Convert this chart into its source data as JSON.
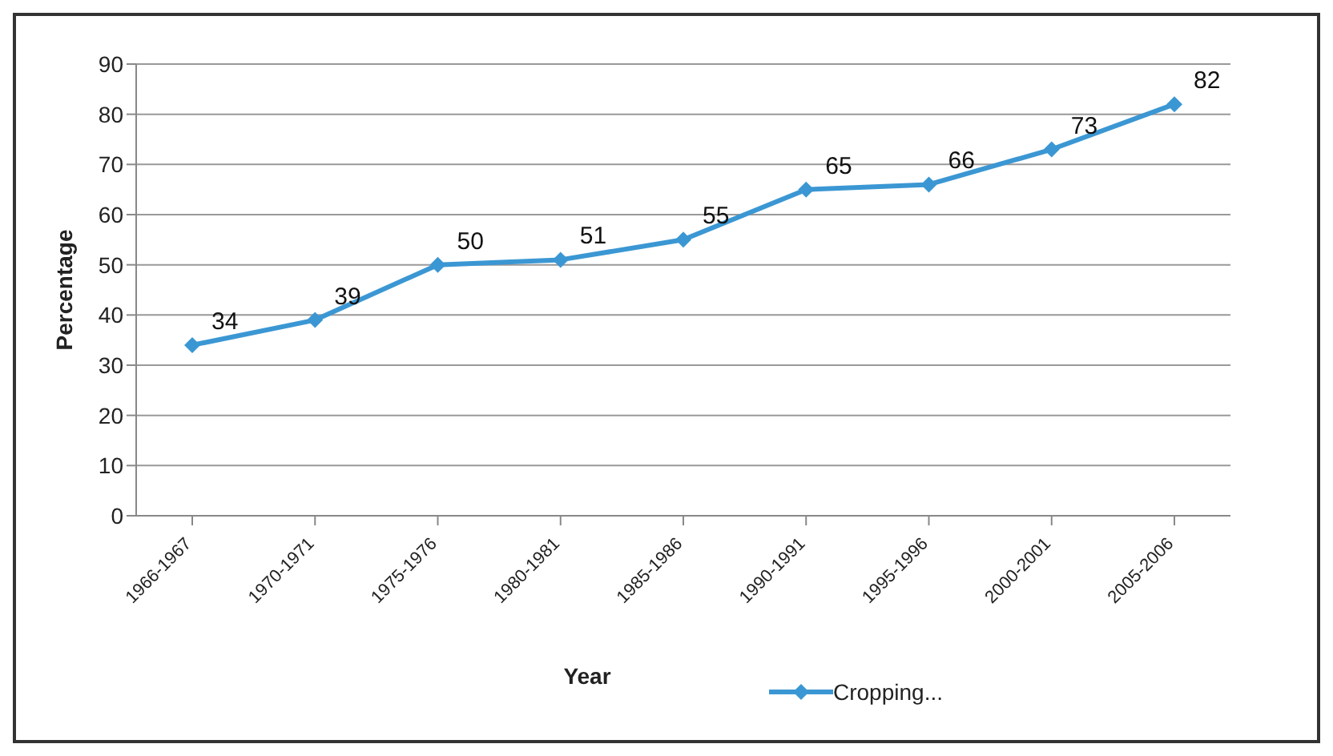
{
  "chart_data": {
    "type": "line",
    "xlabel": "Year",
    "ylabel": "Percentage",
    "categories": [
      "1966-1967",
      "1970-1971",
      "1975-1976",
      "1980-1981",
      "1985-1986",
      "1990-1991",
      "1995-1996",
      "2000-2001",
      "2005-2006"
    ],
    "series": [
      {
        "name": "Cropping...",
        "color": "#3b97d3",
        "values": [
          34,
          39,
          50,
          51,
          55,
          65,
          66,
          73,
          82
        ]
      }
    ],
    "ylim": [
      0,
      90
    ],
    "yticks": [
      0,
      10,
      20,
      30,
      40,
      50,
      60,
      70,
      80,
      90
    ],
    "grid": "y",
    "legend": "bottom",
    "marker": "diamond",
    "line_style": "solid",
    "data_labels": true
  }
}
